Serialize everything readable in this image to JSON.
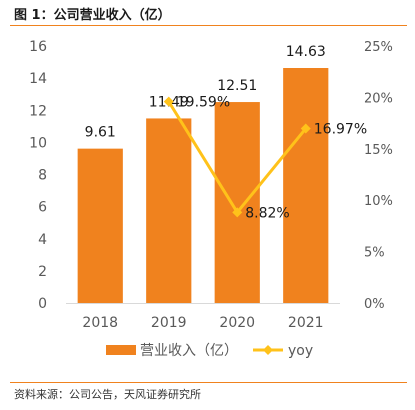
{
  "figure": {
    "title": "图 1：公司营业收入（亿）",
    "source": "资料来源：公司公告，天风证券研究所"
  },
  "colors": {
    "bar": "#f0821e",
    "line": "#ffc21a",
    "rule": "#f0821e",
    "axis": "#d9d9d9",
    "text": "#595959"
  },
  "chart_data": {
    "type": "bar",
    "categories": [
      "2018",
      "2019",
      "2020",
      "2021"
    ],
    "series": [
      {
        "name": "营业收入（亿）",
        "type": "bar",
        "axis": "left",
        "values": [
          9.61,
          11.49,
          12.51,
          14.63
        ],
        "labels": [
          "9.61",
          "11.49",
          "12.51",
          "14.63"
        ]
      },
      {
        "name": "yoy",
        "type": "line",
        "axis": "right",
        "values": [
          null,
          0.1959,
          0.0882,
          0.1697
        ],
        "labels": [
          "",
          "19.59%",
          "8.82%",
          "16.97%"
        ]
      }
    ],
    "y_left": {
      "min": 0,
      "max": 16,
      "ticks": [
        "0",
        "2",
        "4",
        "6",
        "8",
        "10",
        "12",
        "14",
        "16"
      ]
    },
    "y_right": {
      "min": 0,
      "max": 0.25,
      "ticks": [
        "0%",
        "5%",
        "10%",
        "15%",
        "20%",
        "25%"
      ]
    },
    "legend_position": "bottom",
    "grid": false
  }
}
